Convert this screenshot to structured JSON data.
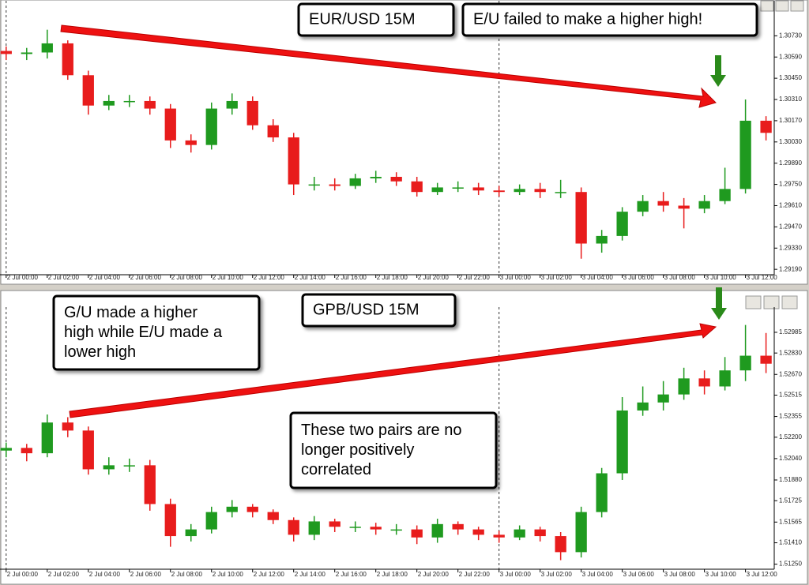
{
  "chart_data": [
    {
      "type": "candlestick",
      "title": "EUR/USD 15M",
      "annotations": [
        [
          "E/U failed to make a higher high!"
        ]
      ],
      "up_color": "#1f9a1f",
      "down_color": "#e81c1c",
      "x": [
        0,
        1,
        2,
        3,
        4,
        5,
        6,
        7,
        8,
        9,
        10,
        11,
        12,
        13,
        14,
        15,
        16,
        17,
        18,
        19,
        20,
        21,
        22,
        23,
        24,
        25,
        26,
        27,
        28,
        29,
        30,
        31,
        32,
        33,
        34,
        35,
        36,
        37
      ],
      "open": [
        1.3063,
        1.3061,
        1.3062,
        1.3068,
        1.3047,
        1.3027,
        1.303,
        1.303,
        1.3025,
        1.3004,
        1.3001,
        1.3025,
        1.303,
        1.3014,
        1.3006,
        1.2975,
        1.2975,
        1.2974,
        1.2979,
        1.298,
        1.2977,
        1.297,
        1.2973,
        1.2973,
        1.2971,
        1.297,
        1.2972,
        1.297,
        1.297,
        1.2936,
        1.2941,
        1.2957,
        1.2964,
        1.2961,
        1.2959,
        1.2964,
        1.2972,
        1.3017
      ],
      "high": [
        1.3066,
        1.3065,
        1.3077,
        1.307,
        1.305,
        1.3034,
        1.3034,
        1.3033,
        1.3028,
        1.3008,
        1.3029,
        1.3035,
        1.3033,
        1.3018,
        1.3009,
        1.298,
        1.2979,
        1.2982,
        1.2984,
        1.2983,
        1.298,
        1.2976,
        1.2977,
        1.2976,
        1.2974,
        1.2975,
        1.2976,
        1.2978,
        1.2973,
        1.2945,
        1.296,
        1.2968,
        1.297,
        1.2966,
        1.2968,
        1.2986,
        1.3031,
        1.302
      ],
      "low": [
        1.3057,
        1.3057,
        1.3058,
        1.3044,
        1.3021,
        1.3024,
        1.3026,
        1.3021,
        1.2999,
        1.2996,
        1.2998,
        1.3021,
        1.3011,
        1.3003,
        1.2968,
        1.2971,
        1.2971,
        1.2972,
        1.2976,
        1.2974,
        1.2967,
        1.2968,
        1.297,
        1.2968,
        1.2967,
        1.2968,
        1.2966,
        1.2966,
        1.2926,
        1.293,
        1.2938,
        1.2954,
        1.2957,
        1.2946,
        1.2956,
        1.2962,
        1.2969,
        1.3004
      ],
      "close": [
        1.3061,
        1.3062,
        1.3068,
        1.3047,
        1.3027,
        1.303,
        1.303,
        1.3025,
        1.3004,
        1.3001,
        1.3025,
        1.303,
        1.3014,
        1.3006,
        1.2975,
        1.2975,
        1.2974,
        1.2979,
        1.298,
        1.2977,
        1.297,
        1.2973,
        1.2973,
        1.2971,
        1.297,
        1.2972,
        1.297,
        1.297,
        1.2936,
        1.2941,
        1.2957,
        1.2964,
        1.2961,
        1.2959,
        1.2964,
        1.2972,
        1.3017,
        1.3009
      ],
      "xlim": [
        -0.3,
        37.4
      ],
      "ylim": [
        1.2917,
        1.3094
      ],
      "xticks": [
        {
          "value": 0,
          "label": "2 Jul 00:00"
        },
        {
          "value": 2,
          "label": "2 Jul 02:00"
        },
        {
          "value": 4,
          "label": "2 Jul 04:00"
        },
        {
          "value": 6,
          "label": "2 Jul 06:00"
        },
        {
          "value": 8,
          "label": "2 Jul 08:00"
        },
        {
          "value": 10,
          "label": "2 Jul 10:00"
        },
        {
          "value": 12,
          "label": "2 Jul 12:00"
        },
        {
          "value": 14,
          "label": "2 Jul 14:00"
        },
        {
          "value": 16,
          "label": "2 Jul 16:00"
        },
        {
          "value": 18,
          "label": "2 Jul 18:00"
        },
        {
          "value": 20,
          "label": "2 Jul 20:00"
        },
        {
          "value": 22,
          "label": "2 Jul 22:00"
        },
        {
          "value": 24,
          "label": "3 Jul 00:00"
        },
        {
          "value": 26,
          "label": "3 Jul 02:00"
        },
        {
          "value": 28,
          "label": "3 Jul 04:00"
        },
        {
          "value": 30,
          "label": "3 Jul 06:00"
        },
        {
          "value": 32,
          "label": "3 Jul 08:00"
        },
        {
          "value": 34,
          "label": "3 Jul 10:00"
        },
        {
          "value": 36,
          "label": "3 Jul 12:00"
        }
      ],
      "yticks": [
        {
          "value": 1.3073,
          "label": "1.30730"
        },
        {
          "value": 1.3059,
          "label": "1.30590"
        },
        {
          "value": 1.3045,
          "label": "1.30450"
        },
        {
          "value": 1.3031,
          "label": "1.30310"
        },
        {
          "value": 1.3017,
          "label": "1.30170"
        },
        {
          "value": 1.3003,
          "label": "1.30030"
        },
        {
          "value": 1.2989,
          "label": "1.29890"
        },
        {
          "value": 1.2975,
          "label": "1.29750"
        },
        {
          "value": 1.2961,
          "label": "1.29610"
        },
        {
          "value": 1.2947,
          "label": "1.29470"
        },
        {
          "value": 1.2933,
          "label": "1.29330"
        },
        {
          "value": 1.2919,
          "label": "1.29190"
        }
      ]
    },
    {
      "type": "candlestick",
      "title": "GPB/USD 15M",
      "annotations": [
        [
          "G/U made a higher",
          "high while E/U made a",
          "lower high"
        ],
        [
          "These two pairs are no",
          "longer positively",
          "correlated"
        ]
      ],
      "up_color": "#1f9a1f",
      "down_color": "#e81c1c",
      "x": [
        0,
        1,
        2,
        3,
        4,
        5,
        6,
        7,
        8,
        9,
        10,
        11,
        12,
        13,
        14,
        15,
        16,
        17,
        18,
        19,
        20,
        21,
        22,
        23,
        24,
        25,
        26,
        27,
        28,
        29,
        30,
        31,
        32,
        33,
        34,
        35,
        36,
        37
      ],
      "open": [
        1.521,
        1.5212,
        1.5208,
        1.5231,
        1.5225,
        1.5196,
        1.5199,
        1.5199,
        1.517,
        1.5146,
        1.5151,
        1.5164,
        1.5168,
        1.5164,
        1.5158,
        1.5147,
        1.5157,
        1.5153,
        1.5153,
        1.5151,
        1.5151,
        1.5145,
        1.5155,
        1.5151,
        1.5147,
        1.5145,
        1.5151,
        1.5146,
        1.5134,
        1.5164,
        1.5193,
        1.524,
        1.5246,
        1.5252,
        1.5264,
        1.5258,
        1.527,
        1.5281
      ],
      "high": [
        1.5216,
        1.5215,
        1.5237,
        1.5235,
        1.5228,
        1.5205,
        1.5204,
        1.5203,
        1.5174,
        1.5155,
        1.5168,
        1.5173,
        1.517,
        1.5166,
        1.516,
        1.5161,
        1.5159,
        1.5157,
        1.5156,
        1.5155,
        1.5154,
        1.5159,
        1.5157,
        1.5153,
        1.515,
        1.5154,
        1.5153,
        1.5149,
        1.5168,
        1.5197,
        1.525,
        1.5258,
        1.5262,
        1.5272,
        1.527,
        1.528,
        1.5304,
        1.5298
      ],
      "low": [
        1.5205,
        1.5202,
        1.5205,
        1.522,
        1.5192,
        1.5192,
        1.5194,
        1.5165,
        1.5138,
        1.5142,
        1.5148,
        1.516,
        1.516,
        1.5155,
        1.5142,
        1.5143,
        1.5149,
        1.5149,
        1.5147,
        1.5147,
        1.514,
        1.5141,
        1.5147,
        1.5143,
        1.5141,
        1.5143,
        1.5142,
        1.5128,
        1.513,
        1.516,
        1.5188,
        1.5236,
        1.524,
        1.5248,
        1.5252,
        1.5255,
        1.5262,
        1.5268
      ],
      "close": [
        1.5212,
        1.5208,
        1.5231,
        1.5225,
        1.5196,
        1.5199,
        1.5199,
        1.517,
        1.5146,
        1.5151,
        1.5164,
        1.5168,
        1.5164,
        1.5158,
        1.5147,
        1.5157,
        1.5153,
        1.5153,
        1.5151,
        1.5151,
        1.5145,
        1.5155,
        1.5151,
        1.5147,
        1.5145,
        1.5151,
        1.5146,
        1.5134,
        1.5164,
        1.5193,
        1.524,
        1.5246,
        1.5252,
        1.5264,
        1.5258,
        1.527,
        1.5281,
        1.5275
      ],
      "xlim": [
        -0.3,
        37.4
      ],
      "ylim": [
        1.5123,
        1.5315
      ],
      "xticks": [
        {
          "value": 0,
          "label": "2 Jul 00:00"
        },
        {
          "value": 2,
          "label": "2 Jul 02:00"
        },
        {
          "value": 4,
          "label": "2 Jul 04:00"
        },
        {
          "value": 6,
          "label": "2 Jul 06:00"
        },
        {
          "value": 8,
          "label": "2 Jul 08:00"
        },
        {
          "value": 10,
          "label": "2 Jul 10:00"
        },
        {
          "value": 12,
          "label": "2 Jul 12:00"
        },
        {
          "value": 14,
          "label": "2 Jul 14:00"
        },
        {
          "value": 16,
          "label": "2 Jul 16:00"
        },
        {
          "value": 18,
          "label": "2 Jul 18:00"
        },
        {
          "value": 20,
          "label": "2 Jul 20:00"
        },
        {
          "value": 22,
          "label": "2 Jul 22:00"
        },
        {
          "value": 24,
          "label": "3 Jul 00:00"
        },
        {
          "value": 26,
          "label": "3 Jul 02:00"
        },
        {
          "value": 28,
          "label": "3 Jul 04:00"
        },
        {
          "value": 30,
          "label": "3 Jul 06:00"
        },
        {
          "value": 32,
          "label": "3 Jul 08:00"
        },
        {
          "value": 34,
          "label": "3 Jul 10:00"
        },
        {
          "value": 36,
          "label": "3 Jul 12:00"
        }
      ],
      "yticks": [
        1.52985,
        {
          "value": 1.5283,
          "label": "1.52830"
        },
        {
          "value": 1.5267,
          "label": "1.52670"
        },
        1.52515,
        1.52355,
        {
          "value": 1.522,
          "label": "1.52200"
        },
        {
          "value": 1.5204,
          "label": "1.52040"
        },
        {
          "value": 1.5188,
          "label": "1.51880"
        },
        1.51725,
        1.51565,
        {
          "value": 1.5141,
          "label": "1.51410"
        },
        {
          "value": 1.5125,
          "label": "1.51250"
        }
      ]
    }
  ]
}
